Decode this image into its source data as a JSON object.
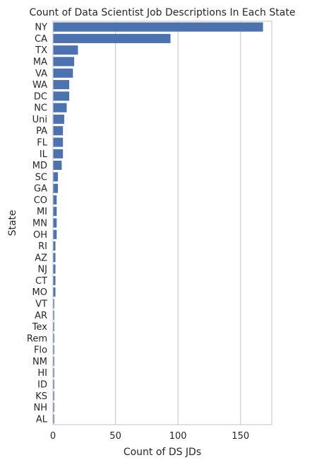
{
  "chart_data": {
    "type": "bar",
    "orientation": "horizontal",
    "title": "Count of Data Scientist Job Descriptions In Each State",
    "xlabel": "Count of DS JDs",
    "ylabel": "State",
    "xlim": [
      0,
      175
    ],
    "xticks": [
      0,
      50,
      100,
      150
    ],
    "grid": "vertical",
    "bar_color": "#4c72b0",
    "categories": [
      "NY",
      "CA",
      "TX",
      "MA",
      "VA",
      "WA",
      "DC",
      "NC",
      "Uni",
      "PA",
      "FL",
      "IL",
      "MD",
      "SC",
      "GA",
      "CO",
      "MI",
      "MN",
      "OH",
      "RI",
      "AZ",
      "NJ",
      "CT",
      "MO",
      "VT",
      "AR",
      "Tex",
      "Rem",
      "Flo",
      "NM",
      "HI",
      "ID",
      "KS",
      "NH",
      "AL"
    ],
    "values": [
      168,
      94,
      20,
      17,
      16,
      13,
      13,
      11,
      9,
      8,
      8,
      8,
      7,
      4,
      4,
      3,
      3,
      3,
      3,
      2,
      2,
      2,
      2,
      2,
      1,
      1,
      1,
      1,
      1,
      1,
      1,
      1,
      1,
      1,
      1
    ]
  }
}
